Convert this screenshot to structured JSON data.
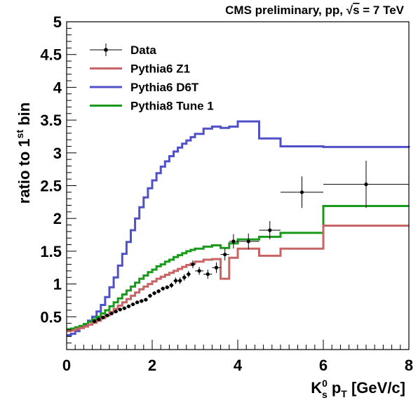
{
  "header": {
    "text_main": "CMS preliminary, pp, ",
    "sqrt_symbol": "√",
    "sqrt_arg": "s",
    "text_tail": " = 7 TeV"
  },
  "chart_data": {
    "type": "line",
    "xlim": [
      0,
      8
    ],
    "ylim": [
      0,
      5
    ],
    "xticks": [
      0,
      2,
      4,
      6,
      8
    ],
    "yticks": [
      0.5,
      1,
      1.5,
      2,
      2.5,
      3,
      3.5,
      4,
      4.5,
      5
    ],
    "xlabel": {
      "base": "K",
      "sup": "0",
      "sub": "s",
      "mid": " p",
      "sub2": "T",
      "tail": " [GeV/c]"
    },
    "ylabel": {
      "pre": "ratio to 1",
      "sup": "st",
      "post": " bin"
    },
    "legend_position": "top-left",
    "legend": [
      {
        "label": "Data",
        "kind": "marker",
        "color": "#000000"
      },
      {
        "label": "Pythia6 Z1",
        "kind": "line",
        "color": "#c86464"
      },
      {
        "label": "Pythia6 D6T",
        "kind": "line",
        "color": "#5050c8"
      },
      {
        "label": "Pythia8 Tune 1",
        "kind": "line",
        "color": "#1a9a1a"
      }
    ],
    "series": [
      {
        "name": "Pythia6 D6T",
        "color": "#5050c8",
        "edges": [
          0,
          0.1,
          0.2,
          0.3,
          0.4,
          0.5,
          0.6,
          0.7,
          0.8,
          0.9,
          1.0,
          1.1,
          1.2,
          1.3,
          1.4,
          1.5,
          1.6,
          1.7,
          1.8,
          1.9,
          2.0,
          2.1,
          2.2,
          2.3,
          2.4,
          2.5,
          2.6,
          2.7,
          2.8,
          2.9,
          3.0,
          3.2,
          3.4,
          3.6,
          3.8,
          4.0,
          4.5,
          5.0,
          6.0,
          8.0
        ],
        "values": [
          0.22,
          0.24,
          0.28,
          0.33,
          0.38,
          0.44,
          0.5,
          0.58,
          0.68,
          0.8,
          0.95,
          1.1,
          1.28,
          1.46,
          1.64,
          1.82,
          2.0,
          2.17,
          2.32,
          2.46,
          2.58,
          2.69,
          2.79,
          2.87,
          2.95,
          3.02,
          3.08,
          3.14,
          3.19,
          3.24,
          3.29,
          3.37,
          3.4,
          3.38,
          3.4,
          3.48,
          3.22,
          3.1,
          3.09,
          3.08
        ]
      },
      {
        "name": "Pythia8 Tune 1",
        "color": "#1a9a1a",
        "edges": [
          0,
          0.1,
          0.2,
          0.3,
          0.4,
          0.5,
          0.6,
          0.7,
          0.8,
          0.9,
          1.0,
          1.1,
          1.2,
          1.3,
          1.4,
          1.5,
          1.6,
          1.7,
          1.8,
          1.9,
          2.0,
          2.1,
          2.2,
          2.3,
          2.4,
          2.5,
          2.6,
          2.7,
          2.8,
          2.9,
          3.0,
          3.2,
          3.4,
          3.6,
          3.8,
          4.0,
          4.5,
          5.0,
          6.0,
          8.0
        ],
        "values": [
          0.31,
          0.32,
          0.34,
          0.36,
          0.39,
          0.42,
          0.46,
          0.5,
          0.55,
          0.6,
          0.66,
          0.72,
          0.78,
          0.84,
          0.9,
          0.96,
          1.02,
          1.08,
          1.13,
          1.18,
          1.22,
          1.27,
          1.3,
          1.34,
          1.37,
          1.41,
          1.44,
          1.47,
          1.5,
          1.52,
          1.54,
          1.57,
          1.59,
          1.55,
          1.62,
          1.68,
          1.72,
          1.78,
          2.19,
          2.19
        ]
      },
      {
        "name": "Pythia6 Z1",
        "color": "#c86464",
        "edges": [
          0,
          0.1,
          0.2,
          0.3,
          0.4,
          0.5,
          0.6,
          0.7,
          0.8,
          0.9,
          1.0,
          1.1,
          1.2,
          1.3,
          1.4,
          1.5,
          1.6,
          1.7,
          1.8,
          1.9,
          2.0,
          2.1,
          2.2,
          2.3,
          2.4,
          2.5,
          2.6,
          2.7,
          2.8,
          2.9,
          3.0,
          3.2,
          3.4,
          3.6,
          3.8,
          4.0,
          4.5,
          5.0,
          6.0,
          8.0
        ],
        "values": [
          0.28,
          0.29,
          0.31,
          0.33,
          0.35,
          0.38,
          0.41,
          0.44,
          0.48,
          0.52,
          0.57,
          0.62,
          0.67,
          0.72,
          0.77,
          0.82,
          0.87,
          0.92,
          0.96,
          1.0,
          1.04,
          1.08,
          1.11,
          1.14,
          1.17,
          1.2,
          1.23,
          1.26,
          1.29,
          1.31,
          1.34,
          1.37,
          1.38,
          1.08,
          1.4,
          1.54,
          1.43,
          1.54,
          1.89,
          1.89
        ]
      }
    ],
    "data_points": [
      {
        "x": 0.65,
        "y": 0.43,
        "xerr": 0.05,
        "yerr": 0.02
      },
      {
        "x": 0.75,
        "y": 0.46,
        "xerr": 0.05,
        "yerr": 0.02
      },
      {
        "x": 0.85,
        "y": 0.49,
        "xerr": 0.05,
        "yerr": 0.02
      },
      {
        "x": 0.95,
        "y": 0.52,
        "xerr": 0.05,
        "yerr": 0.02
      },
      {
        "x": 1.05,
        "y": 0.55,
        "xerr": 0.05,
        "yerr": 0.02
      },
      {
        "x": 1.15,
        "y": 0.58,
        "xerr": 0.05,
        "yerr": 0.02
      },
      {
        "x": 1.25,
        "y": 0.61,
        "xerr": 0.05,
        "yerr": 0.02
      },
      {
        "x": 1.35,
        "y": 0.63,
        "xerr": 0.05,
        "yerr": 0.02
      },
      {
        "x": 1.45,
        "y": 0.66,
        "xerr": 0.05,
        "yerr": 0.02
      },
      {
        "x": 1.55,
        "y": 0.69,
        "xerr": 0.05,
        "yerr": 0.02
      },
      {
        "x": 1.65,
        "y": 0.72,
        "xerr": 0.05,
        "yerr": 0.02
      },
      {
        "x": 1.75,
        "y": 0.74,
        "xerr": 0.05,
        "yerr": 0.02
      },
      {
        "x": 1.85,
        "y": 0.76,
        "xerr": 0.05,
        "yerr": 0.02
      },
      {
        "x": 1.95,
        "y": 0.82,
        "xerr": 0.05,
        "yerr": 0.03
      },
      {
        "x": 2.05,
        "y": 0.86,
        "xerr": 0.05,
        "yerr": 0.03
      },
      {
        "x": 2.15,
        "y": 0.89,
        "xerr": 0.05,
        "yerr": 0.03
      },
      {
        "x": 2.25,
        "y": 0.93,
        "xerr": 0.05,
        "yerr": 0.03
      },
      {
        "x": 2.35,
        "y": 0.95,
        "xerr": 0.05,
        "yerr": 0.03
      },
      {
        "x": 2.45,
        "y": 0.98,
        "xerr": 0.05,
        "yerr": 0.04
      },
      {
        "x": 2.55,
        "y": 1.05,
        "xerr": 0.05,
        "yerr": 0.05
      },
      {
        "x": 2.65,
        "y": 1.05,
        "xerr": 0.05,
        "yerr": 0.05
      },
      {
        "x": 2.75,
        "y": 1.1,
        "xerr": 0.05,
        "yerr": 0.05
      },
      {
        "x": 2.85,
        "y": 1.15,
        "xerr": 0.05,
        "yerr": 0.05
      },
      {
        "x": 2.95,
        "y": 1.3,
        "xerr": 0.05,
        "yerr": 0.06
      },
      {
        "x": 3.1,
        "y": 1.2,
        "xerr": 0.1,
        "yerr": 0.06
      },
      {
        "x": 3.3,
        "y": 1.15,
        "xerr": 0.1,
        "yerr": 0.07
      },
      {
        "x": 3.5,
        "y": 1.25,
        "xerr": 0.1,
        "yerr": 0.08
      },
      {
        "x": 3.7,
        "y": 1.45,
        "xerr": 0.1,
        "yerr": 0.09
      },
      {
        "x": 3.9,
        "y": 1.65,
        "xerr": 0.1,
        "yerr": 0.11
      },
      {
        "x": 4.25,
        "y": 1.65,
        "xerr": 0.25,
        "yerr": 0.12
      },
      {
        "x": 4.75,
        "y": 1.82,
        "xerr": 0.25,
        "yerr": 0.14
      },
      {
        "x": 5.5,
        "y": 2.4,
        "xerr": 0.5,
        "yerr": 0.24
      },
      {
        "x": 7.0,
        "y": 2.52,
        "xerr": 1.0,
        "yerr": 0.36
      }
    ]
  }
}
